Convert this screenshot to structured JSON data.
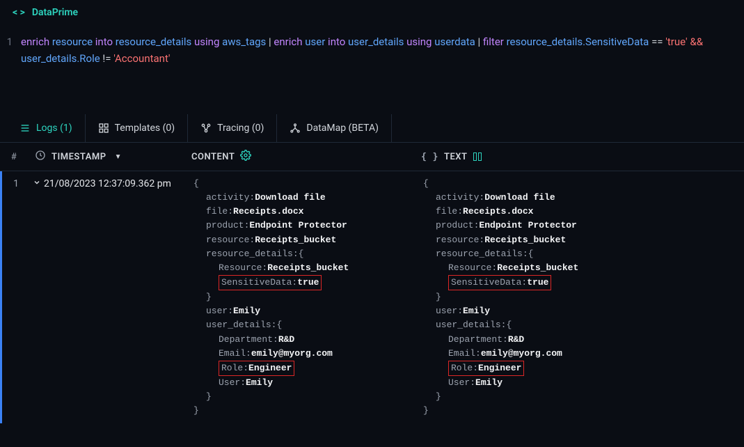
{
  "header": {
    "title": "DataPrime"
  },
  "query": {
    "line_number": "1",
    "tokens": [
      {
        "t": "kw",
        "v": "enrich"
      },
      {
        "t": "sp"
      },
      {
        "t": "ident",
        "v": "resource"
      },
      {
        "t": "sp"
      },
      {
        "t": "kw",
        "v": "into"
      },
      {
        "t": "sp"
      },
      {
        "t": "ident",
        "v": "resource_details"
      },
      {
        "t": "sp"
      },
      {
        "t": "kw",
        "v": "using"
      },
      {
        "t": "sp"
      },
      {
        "t": "ident",
        "v": "aws_tags"
      },
      {
        "t": "sp"
      },
      {
        "t": "pipe",
        "v": "|"
      },
      {
        "t": "sp"
      },
      {
        "t": "kw",
        "v": "enrich"
      },
      {
        "t": "sp"
      },
      {
        "t": "ident",
        "v": "user"
      },
      {
        "t": "sp"
      },
      {
        "t": "kw",
        "v": "into"
      },
      {
        "t": "sp"
      },
      {
        "t": "ident",
        "v": "user_details"
      },
      {
        "t": "sp"
      },
      {
        "t": "kw",
        "v": "using"
      },
      {
        "t": "sp"
      },
      {
        "t": "ident",
        "v": "userdata"
      },
      {
        "t": "sp"
      },
      {
        "t": "pipe",
        "v": "|"
      },
      {
        "t": "sp"
      },
      {
        "t": "kw",
        "v": "filter"
      },
      {
        "t": "sp"
      },
      {
        "t": "ident",
        "v": "resource_details.SensitiveData"
      },
      {
        "t": "sp"
      },
      {
        "t": "plain",
        "v": "=="
      },
      {
        "t": "sp"
      },
      {
        "t": "str",
        "v": "'true'"
      },
      {
        "t": "sp"
      },
      {
        "t": "op",
        "v": "&&"
      },
      {
        "t": "sp"
      },
      {
        "t": "ident",
        "v": "user_details.Role"
      },
      {
        "t": "sp"
      },
      {
        "t": "plain",
        "v": "!="
      },
      {
        "t": "sp"
      },
      {
        "t": "str",
        "v": "'Accountant'"
      }
    ]
  },
  "tabs": [
    {
      "label": "Logs (1)",
      "active": true,
      "icon": "list"
    },
    {
      "label": "Templates (0)",
      "active": false,
      "icon": "templates"
    },
    {
      "label": "Tracing (0)",
      "active": false,
      "icon": "tracing"
    },
    {
      "label": "DataMap (BETA)",
      "active": false,
      "icon": "datamap"
    }
  ],
  "columns": {
    "num": "#",
    "timestamp": "TIMESTAMP",
    "content": "CONTENT",
    "text": "TEXT"
  },
  "row": {
    "num": "1",
    "timestamp": "21/08/2023 12:37:09.362 pm",
    "json": {
      "activity": "Download file",
      "file": "Receipts.docx",
      "product": "Endpoint Protector",
      "resource": "Receipts_bucket",
      "resource_details": {
        "Resource": "Receipts_bucket",
        "SensitiveData": "true"
      },
      "user": "Emily",
      "user_details": {
        "Department": "R&D",
        "Email": "emily@myorg.com",
        "Role": "Engineer",
        "User": "Emily"
      }
    },
    "highlights": [
      "SensitiveData",
      "Role"
    ]
  },
  "colors": {
    "background": "#0a0d14",
    "accent": "#2dd4bf",
    "keyword": "#c084fc",
    "identifier": "#60a5fa",
    "string": "#f87171",
    "highlight_border": "#dc2626",
    "row_indicator": "#3b82f6",
    "text_muted": "#9ca3af",
    "text_value": "#f3f4f6",
    "border": "#1f2937"
  }
}
